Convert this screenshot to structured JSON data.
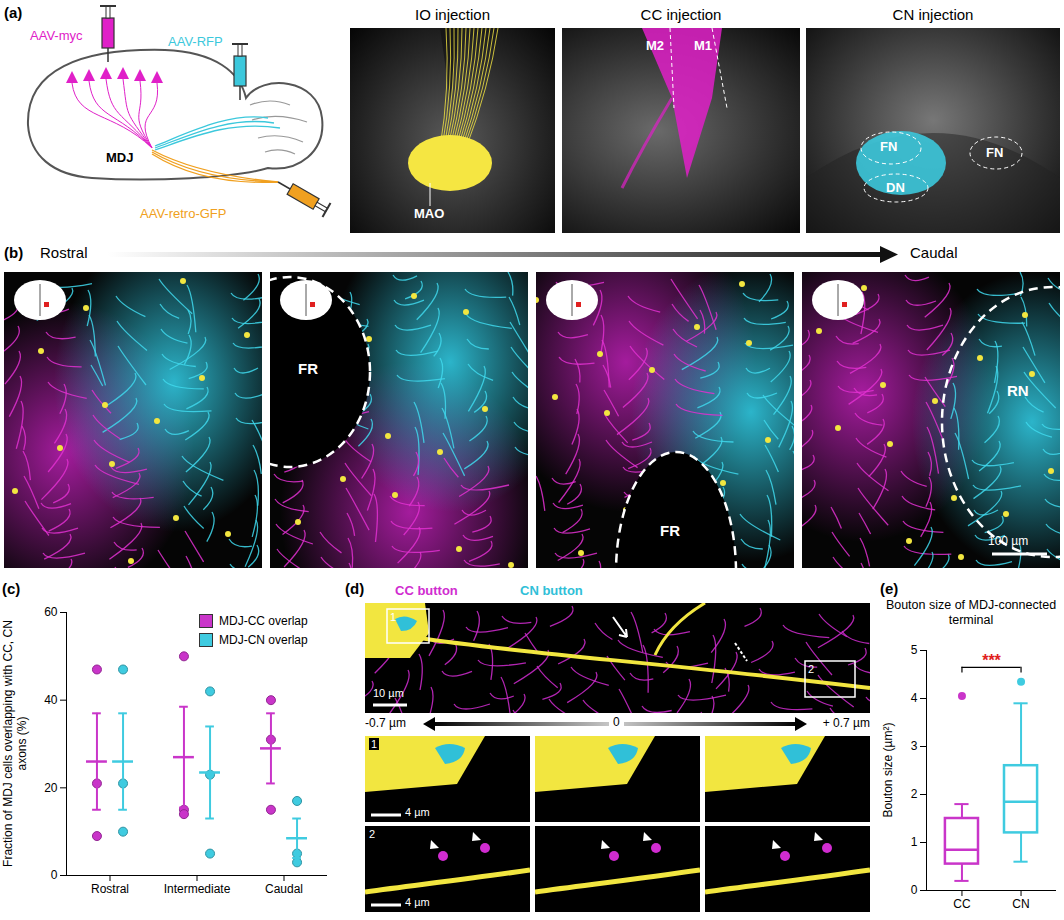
{
  "figure": {
    "a": {
      "label": "(a)",
      "schematic": {
        "injections": [
          {
            "text": "AAV-myc",
            "color": "#e020c8"
          },
          {
            "text": "AAV-RFP",
            "color": "#3cc8dc"
          },
          {
            "text": "AAV-retro-GFP",
            "color": "#f0a020"
          }
        ],
        "target": "MDJ"
      },
      "images": [
        {
          "title": "IO injection",
          "labels": [
            "MAO"
          ]
        },
        {
          "title": "CC injection",
          "labels": [
            "M2",
            "M1"
          ]
        },
        {
          "title": "CN injection",
          "labels": [
            "FN",
            "DN",
            "FN"
          ]
        }
      ]
    },
    "b": {
      "label": "(b)",
      "axis": [
        "Rostral",
        "Caudal"
      ],
      "images": [
        {
          "labels": []
        },
        {
          "labels": [
            "FR"
          ]
        },
        {
          "labels": [
            "FR"
          ]
        },
        {
          "labels": [
            "RN"
          ]
        }
      ],
      "scale_bar": "100 µm"
    },
    "d": {
      "label": "(d)",
      "legend": [
        {
          "text": "CC button",
          "color": "#d02cd0"
        },
        {
          "text": "CN button",
          "color": "#30c0d8"
        }
      ],
      "insets": [
        "1",
        "2"
      ],
      "scale_bars": [
        "10 µm",
        "4 µm",
        "4 µm"
      ],
      "depths": [
        "-0.7 µm",
        "0",
        "+ 0.7 µm"
      ]
    }
  },
  "chart_data": [
    {
      "label": "(c)",
      "type": "dot_errorbar",
      "categories": [
        "Rostral",
        "Intermediate",
        "Caudal"
      ],
      "ylabel": "Fraction of MDJ cells overlapping with CC, CN axons (%)",
      "ylim": [
        0,
        60
      ],
      "yticks": [
        0,
        20,
        40,
        60
      ],
      "legend": "top-right",
      "series": [
        {
          "name": "MDJ-CC overlap",
          "color": "#c935c9",
          "values": [
            26,
            27,
            29
          ],
          "errors": [
            11,
            11.5,
            8
          ],
          "points": [
            [
              47,
              21,
              9
            ],
            [
              50,
              15,
              14
            ],
            [
              40,
              31,
              15
            ]
          ]
        },
        {
          "name": "MDJ-CN overlap",
          "color": "#3fcbe0",
          "values": [
            26,
            23.5,
            8.5
          ],
          "errors": [
            11,
            10.5,
            4.5
          ],
          "points": [
            [
              47,
              21,
              10
            ],
            [
              42,
              23,
              5
            ],
            [
              17,
              5,
              3
            ]
          ]
        }
      ]
    },
    {
      "label": "(e)",
      "type": "box",
      "title": "Bouton size of MDJ-connected terminal",
      "ylabel": "Bouton size (µm²)",
      "categories": [
        "CC",
        "CN"
      ],
      "colors": [
        "#c935c9",
        "#3fcbe0"
      ],
      "boxes": [
        {
          "min": 0.2,
          "q1": 0.55,
          "median": 0.85,
          "q3": 1.5,
          "max": 1.8,
          "outliers": [
            4.05
          ]
        },
        {
          "min": 0.6,
          "q1": 1.2,
          "median": 1.85,
          "q3": 2.6,
          "max": 3.9,
          "outliers": [
            4.35
          ]
        }
      ],
      "ylim": [
        0,
        5
      ],
      "yticks": [
        0,
        1,
        2,
        3,
        4,
        5
      ],
      "annotations": [
        {
          "text": "***",
          "between": [
            "CC",
            "CN"
          ],
          "color": "#e02020"
        }
      ]
    }
  ]
}
